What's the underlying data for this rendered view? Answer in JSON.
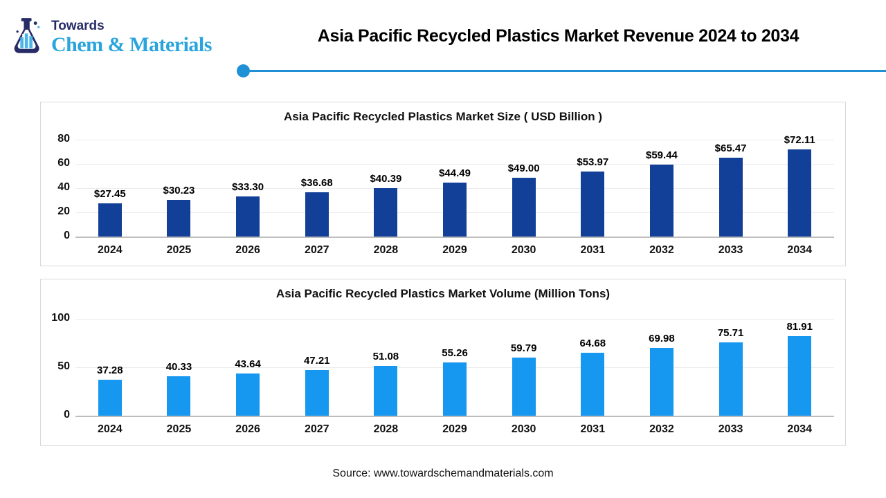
{
  "header": {
    "logo_top": "Towards",
    "logo_bottom": "Chem & Materials",
    "title": "Asia Pacific Recycled Plastics Market Revenue 2024 to 2034"
  },
  "footer": {
    "source": "Source: www.towardschemandmaterials.com"
  },
  "colors": {
    "accent_divider": "#2090d5",
    "logo_navy": "#272c67",
    "logo_blue": "#29a4dc",
    "market_size_bar": "#123f97",
    "market_volume_bar": "#1697f0"
  },
  "chart_data": [
    {
      "type": "bar",
      "title": "Asia Pacific Recycled Plastics Market Size ( USD Billion )",
      "categories": [
        "2024",
        "2025",
        "2026",
        "2027",
        "2028",
        "2029",
        "2030",
        "2031",
        "2032",
        "2033",
        "2034"
      ],
      "values": [
        27.45,
        30.23,
        33.3,
        36.68,
        40.39,
        44.49,
        49.0,
        53.97,
        59.44,
        65.47,
        72.11
      ],
      "label_prefix": "$",
      "xlabel": "",
      "ylabel": "",
      "yticks": [
        0,
        20,
        40,
        60,
        80
      ],
      "ylim": [
        0,
        86
      ],
      "grid": true,
      "legend": "none",
      "bar_color": "#123f97"
    },
    {
      "type": "bar",
      "title": "Asia Pacific Recycled Plastics Market Volume (Million Tons)",
      "categories": [
        "2024",
        "2025",
        "2026",
        "2027",
        "2028",
        "2029",
        "2030",
        "2031",
        "2032",
        "2033",
        "2034"
      ],
      "values": [
        37.28,
        40.33,
        43.64,
        47.21,
        51.08,
        55.26,
        59.79,
        64.68,
        69.98,
        75.71,
        81.91
      ],
      "label_prefix": "",
      "xlabel": "",
      "ylabel": "",
      "yticks": [
        0,
        50,
        100
      ],
      "ylim": [
        0,
        107
      ],
      "grid": true,
      "legend": "none",
      "bar_color": "#1697f0"
    }
  ]
}
